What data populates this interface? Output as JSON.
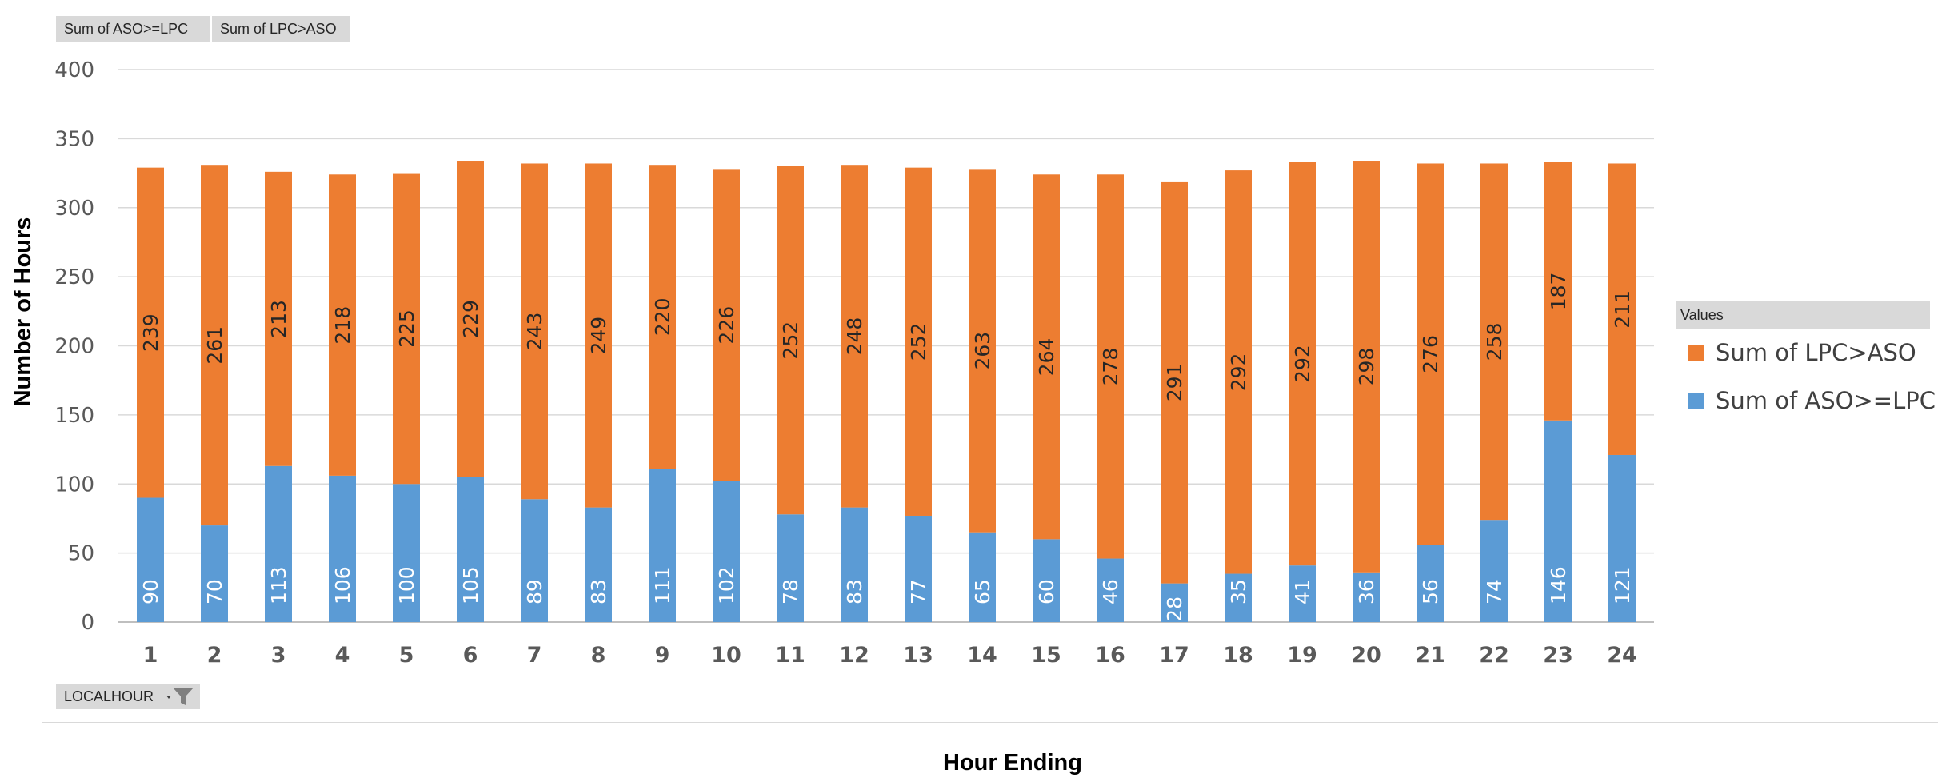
{
  "chart_data": {
    "type": "bar",
    "stacked": true,
    "categories": [
      "1",
      "2",
      "3",
      "4",
      "5",
      "6",
      "7",
      "8",
      "9",
      "10",
      "11",
      "12",
      "13",
      "14",
      "15",
      "16",
      "17",
      "18",
      "19",
      "20",
      "21",
      "22",
      "23",
      "24"
    ],
    "series": [
      {
        "name": "Sum of ASO>=LPC",
        "color": "#5b9bd5",
        "values": [
          90,
          70,
          113,
          106,
          100,
          105,
          89,
          83,
          111,
          102,
          78,
          83,
          77,
          65,
          60,
          46,
          28,
          35,
          41,
          36,
          56,
          74,
          146,
          121
        ]
      },
      {
        "name": "Sum of LPC>ASO",
        "color": "#ed7d31",
        "values": [
          239,
          261,
          213,
          218,
          225,
          229,
          243,
          249,
          220,
          226,
          252,
          248,
          252,
          263,
          264,
          278,
          291,
          292,
          292,
          298,
          276,
          258,
          187,
          211
        ]
      }
    ],
    "xlabel": "Hour Ending",
    "ylabel": "Number of Hours",
    "ylim": [
      0,
      400
    ],
    "yticks": [
      0,
      50,
      100,
      150,
      200,
      250,
      300,
      350,
      400
    ],
    "grid": true,
    "legend_position": "right"
  },
  "field_buttons": {
    "aso": "Sum of ASO>=LPC",
    "lpc": "Sum of LPC>ASO",
    "localhour": "LOCALHOUR"
  },
  "legend": {
    "header": "Values",
    "items": [
      {
        "label": "Sum of LPC>ASO",
        "color": "#ed7d31"
      },
      {
        "label": "Sum of ASO>=LPC",
        "color": "#5b9bd5"
      }
    ]
  },
  "icons": {
    "filter": "filter-dropdown-icon"
  }
}
